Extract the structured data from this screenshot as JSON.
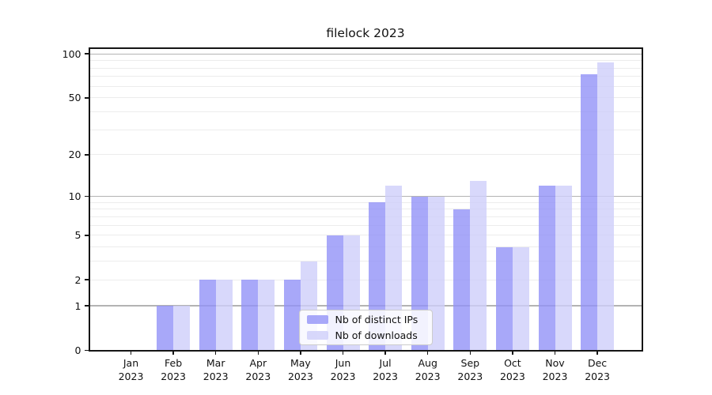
{
  "chart_data": {
    "type": "bar",
    "title": "filelock 2023",
    "categories": [
      "Jan 2023",
      "Feb 2023",
      "Mar 2023",
      "Apr 2023",
      "May 2023",
      "Jun 2023",
      "Jul 2023",
      "Aug 2023",
      "Sep 2023",
      "Oct 2023",
      "Nov 2023",
      "Dec 2023"
    ],
    "series": [
      {
        "name": "Nb of distinct IPs",
        "color": "rgba(146,146,248,0.8)",
        "values": [
          0,
          1,
          2,
          2,
          2,
          5,
          9,
          10,
          8,
          4,
          12,
          73
        ]
      },
      {
        "name": "Nb of downloads",
        "color": "rgba(206,206,250,0.8)",
        "values": [
          0,
          1,
          2,
          2,
          3,
          5,
          12,
          10,
          13,
          4,
          12,
          88
        ]
      }
    ],
    "xlabel": "",
    "ylabel": "",
    "y_axis": {
      "scale": "log1p",
      "ylim": [
        0,
        100
      ],
      "ticks": [
        0,
        1,
        2,
        5,
        10,
        20,
        50,
        100
      ],
      "major_gridlines": [
        1,
        10,
        100
      ],
      "minor_gridlines": [
        2,
        3,
        4,
        5,
        6,
        7,
        8,
        9,
        20,
        30,
        40,
        50,
        60,
        70,
        80,
        90
      ]
    },
    "grid": true,
    "legend": {
      "position": "lower center",
      "labels": [
        "Nb of distinct IPs",
        "Nb of downloads"
      ]
    }
  },
  "styles": {
    "grid_major": "#b3b3b3",
    "grid_minor": "#ececec",
    "spine": "#151515",
    "legend_bg": "rgba(255,255,255,0.85)",
    "legend_border": "#cccccc"
  }
}
